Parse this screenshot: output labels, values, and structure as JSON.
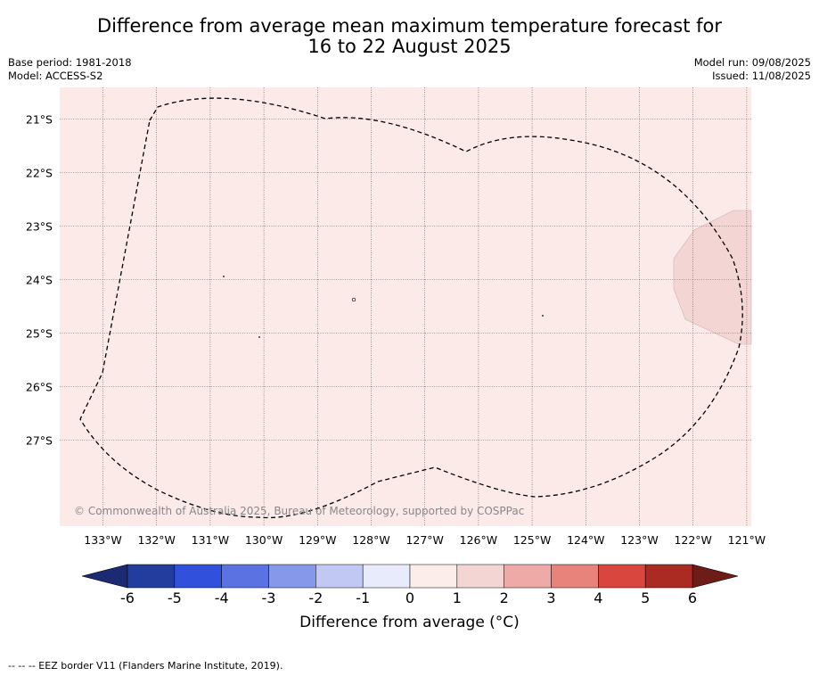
{
  "title": {
    "line1": "Difference from average mean maximum temperature forecast for",
    "line2": "16 to 22 August 2025"
  },
  "meta_left": {
    "base_period": "Base period: 1981-2018",
    "model": "Model: ACCESS-S2"
  },
  "meta_right": {
    "model_run": "Model run: 09/08/2025",
    "issued": "Issued: 11/08/2025"
  },
  "map": {
    "copyright": "© Commonwealth of Australia 2025, Bureau of Meteorology, supported by COSPPac",
    "lon_labels": [
      "133°W",
      "132°W",
      "131°W",
      "130°W",
      "129°W",
      "128°W",
      "127°W",
      "126°W",
      "125°W",
      "124°W",
      "123°W",
      "122°W",
      "121°W"
    ],
    "lat_labels": [
      "21°S",
      "22°S",
      "23°S",
      "24°S",
      "25°S",
      "26°S",
      "27°S"
    ],
    "background_color": "#fbeae8",
    "warm_patch_color": "#f3d6d4"
  },
  "colorbar": {
    "ticks": [
      "-6",
      "-5",
      "-4",
      "-3",
      "-2",
      "-1",
      "0",
      "1",
      "2",
      "3",
      "4",
      "5",
      "6"
    ],
    "colors": [
      "#233d9e",
      "#3150dc",
      "#5a72e2",
      "#8598ea",
      "#c1c8f4",
      "#e8ebfb",
      "#fcecea",
      "#f3d6d4",
      "#eeaaa6",
      "#e8837c",
      "#d9463e",
      "#ab2a22"
    ],
    "under_color": "#1b2a72",
    "over_color": "#6e1c18",
    "label": "Difference from average (°C)"
  },
  "footer": "--  --  -- EEZ border V11 (Flanders Marine Institute, 2019)."
}
